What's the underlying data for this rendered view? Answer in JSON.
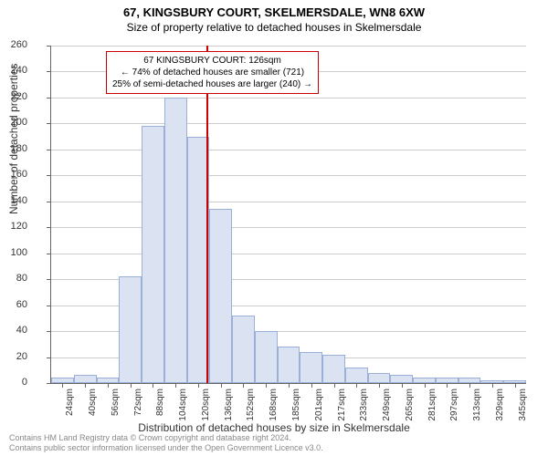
{
  "title": "67, KINGSBURY COURT, SKELMERSDALE, WN8 6XW",
  "subtitle": "Size of property relative to detached houses in Skelmersdale",
  "ylabel": "Number of detached properties",
  "xlabel": "Distribution of detached houses by size in Skelmersdale",
  "chart": {
    "type": "histogram",
    "ylim": [
      0,
      260
    ],
    "ytick_step": 20,
    "bar_fill": "#dbe3f3",
    "bar_border": "#9bb0d8",
    "grid_color": "#cccccc",
    "refline_color": "#cc0000",
    "refline_x": 126,
    "x_start": 16,
    "x_step": 16,
    "categories": [
      "24sqm",
      "40sqm",
      "56sqm",
      "72sqm",
      "88sqm",
      "104sqm",
      "120sqm",
      "136sqm",
      "152sqm",
      "168sqm",
      "185sqm",
      "201sqm",
      "217sqm",
      "233sqm",
      "249sqm",
      "265sqm",
      "281sqm",
      "297sqm",
      "313sqm",
      "329sqm",
      "345sqm"
    ],
    "values": [
      4,
      6,
      4,
      82,
      198,
      220,
      190,
      134,
      52,
      40,
      28,
      24,
      22,
      12,
      8,
      6,
      4,
      4,
      4,
      2,
      2
    ]
  },
  "annotation": {
    "line1": "67 KINGSBURY COURT: 126sqm",
    "line2": "← 74% of detached houses are smaller (721)",
    "line3": "25% of semi-detached houses are larger (240) →"
  },
  "footer": {
    "line1": "Contains HM Land Registry data © Crown copyright and database right 2024.",
    "line2": "Contains public sector information licensed under the Open Government Licence v3.0."
  }
}
